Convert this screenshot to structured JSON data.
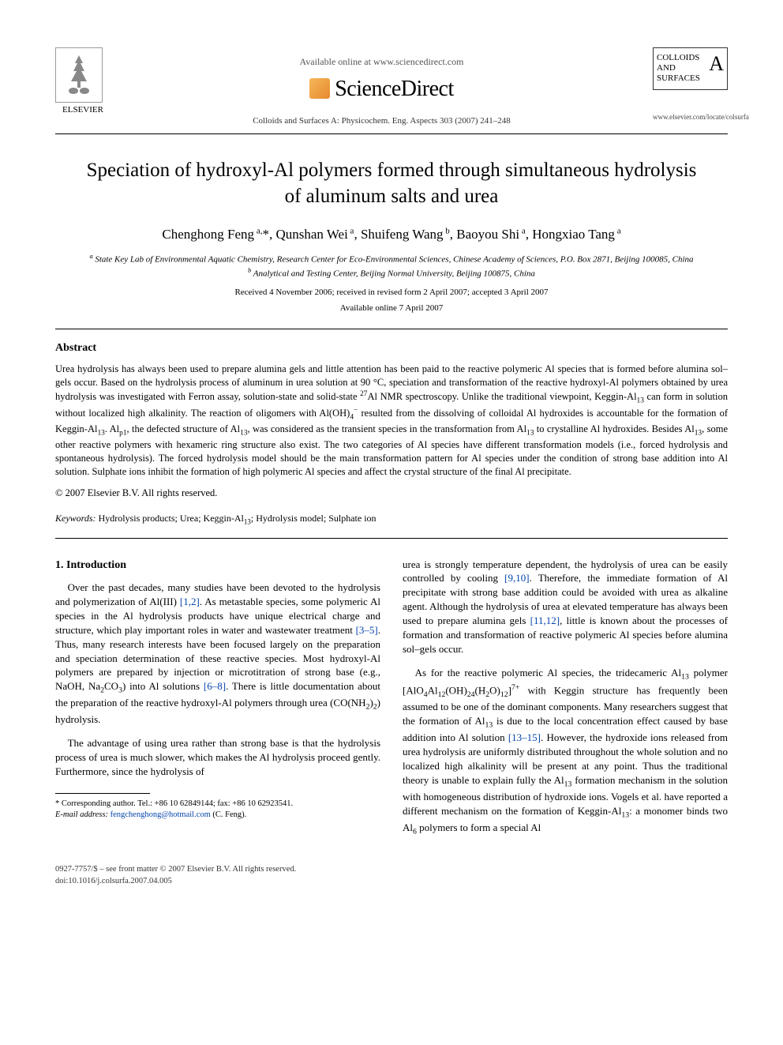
{
  "header": {
    "elsevier_label": "ELSEVIER",
    "available_online": "Available online at www.sciencedirect.com",
    "sciencedirect": "ScienceDirect",
    "journal_citation": "Colloids and Surfaces A: Physicochem. Eng. Aspects 303 (2007) 241–248",
    "colloids_line1": "COLLOIDS",
    "colloids_line2": "AND",
    "colloids_line3": "SURFACES",
    "colloids_A": "A",
    "journal_url": "www.elsevier.com/locate/colsurfa"
  },
  "title": "Speciation of hydroxyl-Al polymers formed through simultaneous hydrolysis of aluminum salts and urea",
  "authors_html": "Chenghong Feng<sup> a,</sup>*, Qunshan Wei<sup> a</sup>, Shuifeng Wang<sup> b</sup>, Baoyou Shi<sup> a</sup>, Hongxiao Tang<sup> a</sup>",
  "affiliations": {
    "a": "State Key Lab of Environmental Aquatic Chemistry, Research Center for Eco-Environmental Sciences, Chinese Academy of Sciences, P.O. Box 2871, Beijing 100085, China",
    "b": "Analytical and Testing Center, Beijing Normal University, Beijing 100875, China"
  },
  "dates": {
    "received": "Received 4 November 2006; received in revised form 2 April 2007; accepted 3 April 2007",
    "online": "Available online 7 April 2007"
  },
  "abstract": {
    "heading": "Abstract",
    "body": "Urea hydrolysis has always been used to prepare alumina gels and little attention has been paid to the reactive polymeric Al species that is formed before alumina sol–gels occur. Based on the hydrolysis process of aluminum in urea solution at 90 °C, speciation and transformation of the reactive hydroxyl-Al polymers obtained by urea hydrolysis was investigated with Ferron assay, solution-state and solid-state 27Al NMR spectroscopy. Unlike the traditional viewpoint, Keggin-Al13 can form in solution without localized high alkalinity. The reaction of oligomers with Al(OH)4− resulted from the dissolving of colloidal Al hydroxides is accountable for the formation of Keggin-Al13. Alp1, the defected structure of Al13, was considered as the transient species in the transformation from Al13 to crystalline Al hydroxides. Besides Al13, some other reactive polymers with hexameric ring structure also exist. The two categories of Al species have different transformation models (i.e., forced hydrolysis and spontaneous hydrolysis). The forced hydrolysis model should be the main transformation pattern for Al species under the condition of strong base addition into Al solution. Sulphate ions inhibit the formation of high polymeric Al species and affect the crystal structure of the final Al precipitate.",
    "copyright": "© 2007 Elsevier B.V. All rights reserved."
  },
  "keywords": {
    "label": "Keywords:",
    "text": "Hydrolysis products; Urea; Keggin-Al13; Hydrolysis model; Sulphate ion"
  },
  "intro": {
    "heading": "1. Introduction",
    "p1_a": "Over the past decades, many studies have been devoted to the hydrolysis and polymerization of Al(III) ",
    "p1_ref1": "[1,2]",
    "p1_b": ". As metastable species, some polymeric Al species in the Al hydrolysis products have unique electrical charge and structure, which play important roles in water and wastewater treatment ",
    "p1_ref2": "[3–5]",
    "p1_c": ". Thus, many research interests have been focused largely on the preparation and speciation determination of these reactive species. Most hydroxyl-Al polymers are prepared by injection or microtitration of strong base (e.g., NaOH, Na2CO3) into Al solutions ",
    "p1_ref3": "[6–8]",
    "p1_d": ". There is little documentation about the preparation of the reactive hydroxyl-Al polymers through urea (CO(NH2)2) hydrolysis.",
    "p2": "The advantage of using urea rather than strong base is that the hydrolysis process of urea is much slower, which makes the Al hydrolysis proceed gently. Furthermore, since the hydrolysis of",
    "p3_a": "urea is strongly temperature dependent, the hydrolysis of urea can be easily controlled by cooling ",
    "p3_ref1": "[9,10]",
    "p3_b": ". Therefore, the immediate formation of Al precipitate with strong base addition could be avoided with urea as alkaline agent. Although the hydrolysis of urea at elevated temperature has always been used to prepare alumina gels ",
    "p3_ref2": "[11,12]",
    "p3_c": ", little is known about the processes of formation and transformation of reactive polymeric Al species before alumina sol–gels occur.",
    "p4_a": "As for the reactive polymeric Al species, the tridecameric Al13 polymer [AlO4Al12(OH)24(H2O)12]7+ with Keggin structure has frequently been assumed to be one of the dominant components. Many researchers suggest that the formation of Al13 is due to the local concentration effect caused by base addition into Al solution ",
    "p4_ref1": "[13–15]",
    "p4_b": ". However, the hydroxide ions released from urea hydrolysis are uniformly distributed throughout the whole solution and no localized high alkalinity will be present at any point. Thus the traditional theory is unable to explain fully the Al13 formation mechanism in the solution with homogeneous distribution of hydroxide ions. Vogels et al. have reported a different mechanism on the formation of Keggin-Al13: a monomer binds two Al6 polymers to form a special Al"
  },
  "footnote": {
    "corresponding": "* Corresponding author. Tel.: +86 10 62849144; fax: +86 10 62923541.",
    "email_label": "E-mail address:",
    "email": "fengchenghong@hotmail.com",
    "email_tail": "(C. Feng)."
  },
  "footer": {
    "left_line1": "0927-7757/$ – see front matter © 2007 Elsevier B.V. All rights reserved.",
    "left_line2": "doi:10.1016/j.colsurfa.2007.04.005"
  },
  "colors": {
    "link": "#0645ad",
    "text": "#000000",
    "muted": "#555555",
    "background": "#ffffff"
  }
}
